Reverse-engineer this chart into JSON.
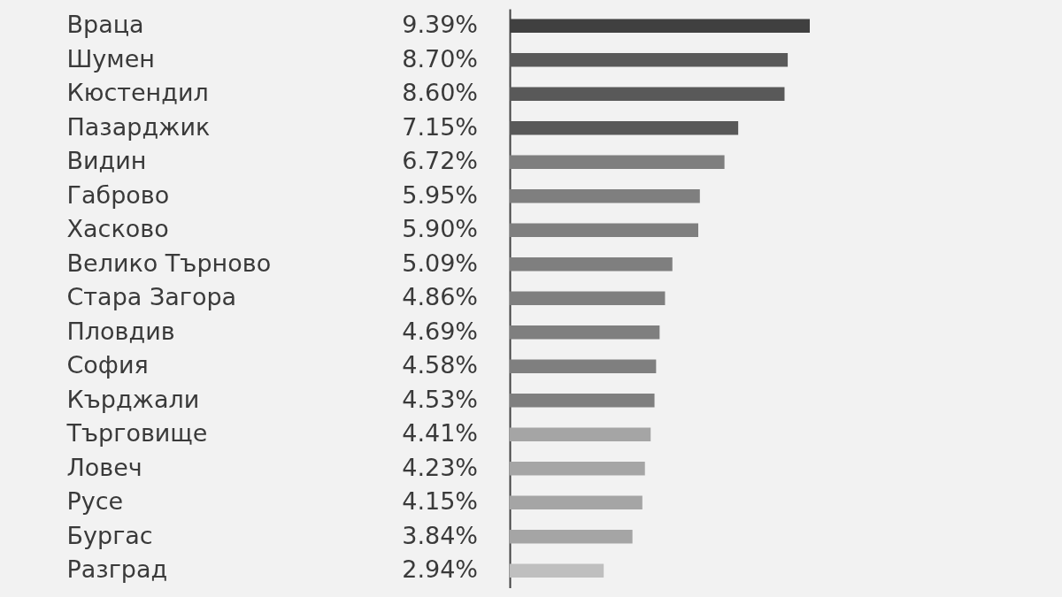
{
  "chart_data": {
    "type": "bar",
    "orientation": "horizontal",
    "categories": [
      "Враца",
      "Шумен",
      "Кюстендил",
      "Пазарджик",
      "Видин",
      "Габрово",
      "Хасково",
      "Велико Търново",
      "Стара Загора",
      "Пловдив",
      "София",
      "Кърджали",
      "Търговище",
      "Ловеч",
      "Русе",
      "Бургас",
      "Разград"
    ],
    "values": [
      9.39,
      8.7,
      8.6,
      7.15,
      6.72,
      5.95,
      5.9,
      5.09,
      4.86,
      4.69,
      4.58,
      4.53,
      4.41,
      4.23,
      4.15,
      3.84,
      2.94
    ],
    "value_labels": [
      "9.39%",
      "8.70%",
      "8.60%",
      "7.15%",
      "6.72%",
      "5.95%",
      "5.90%",
      "5.09%",
      "4.86%",
      "4.69%",
      "4.58%",
      "4.53%",
      "4.41%",
      "4.23%",
      "4.15%",
      "3.84%",
      "2.94%"
    ],
    "colors": [
      "#404040",
      "#595959",
      "#595959",
      "#595959",
      "#7f7f7f",
      "#7f7f7f",
      "#7f7f7f",
      "#7f7f7f",
      "#7f7f7f",
      "#7f7f7f",
      "#7f7f7f",
      "#7f7f7f",
      "#a5a5a5",
      "#a5a5a5",
      "#a5a5a5",
      "#a5a5a5",
      "#bfbfbf"
    ],
    "tick_labels": "y",
    "grid": false
  }
}
